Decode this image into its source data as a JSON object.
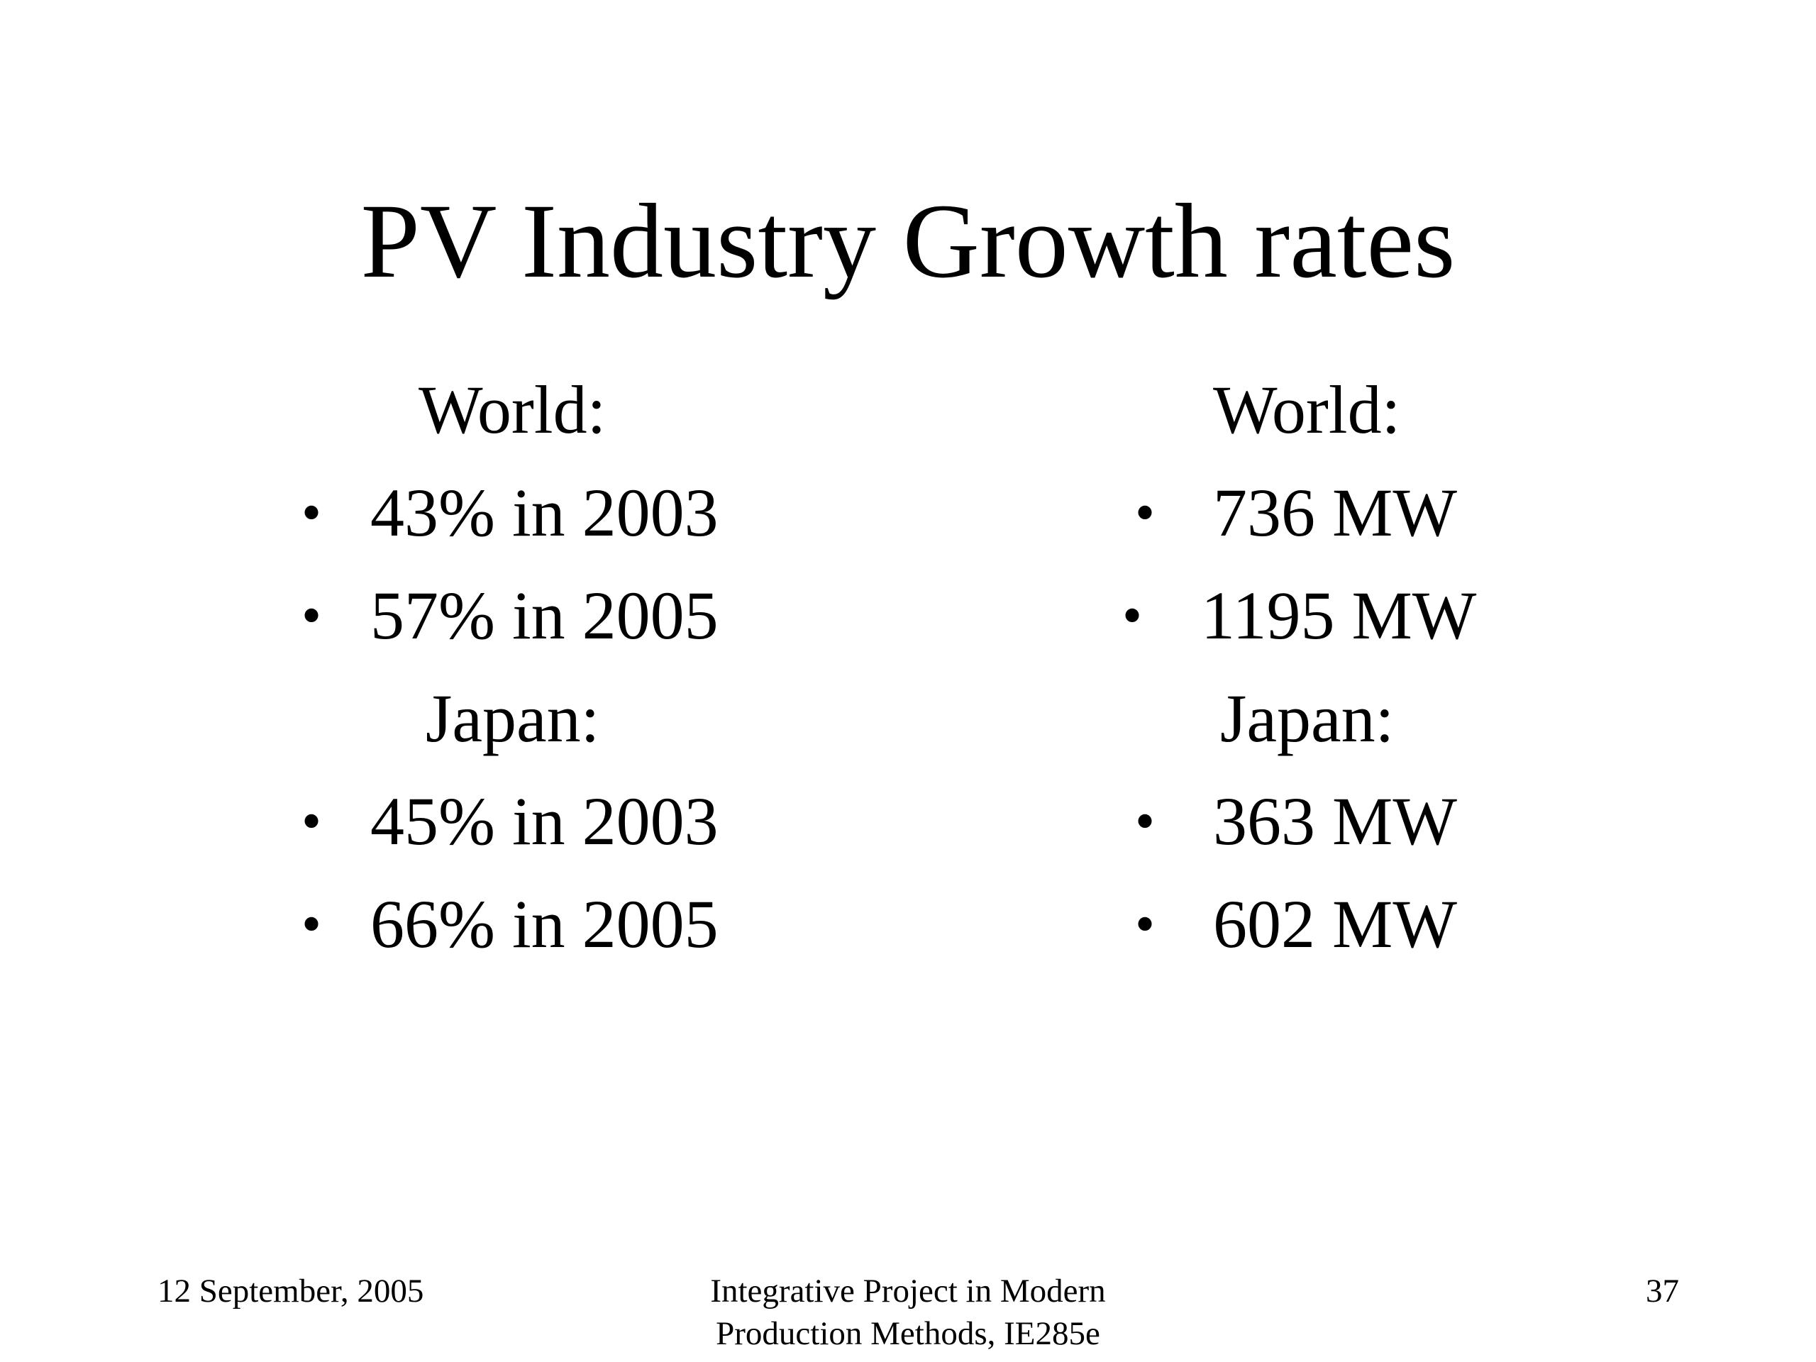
{
  "title": "PV Industry Growth rates",
  "left_column": {
    "world_heading": "World:",
    "world_items": [
      "43% in 2003",
      "57% in 2005"
    ],
    "japan_heading": "Japan:",
    "japan_items": [
      "45% in 2003",
      "66% in 2005"
    ]
  },
  "right_column": {
    "world_heading": "World:",
    "world_items": [
      "736 MW",
      "1195 MW"
    ],
    "japan_heading": "Japan:",
    "japan_items": [
      "363 MW",
      "602 MW"
    ]
  },
  "bullet_glyph": "•",
  "footer": {
    "date": "12 September, 2005",
    "course_line1": "Integrative Project in Modern",
    "course_line2": "Production Methods, IE285e",
    "page_number": "37"
  }
}
